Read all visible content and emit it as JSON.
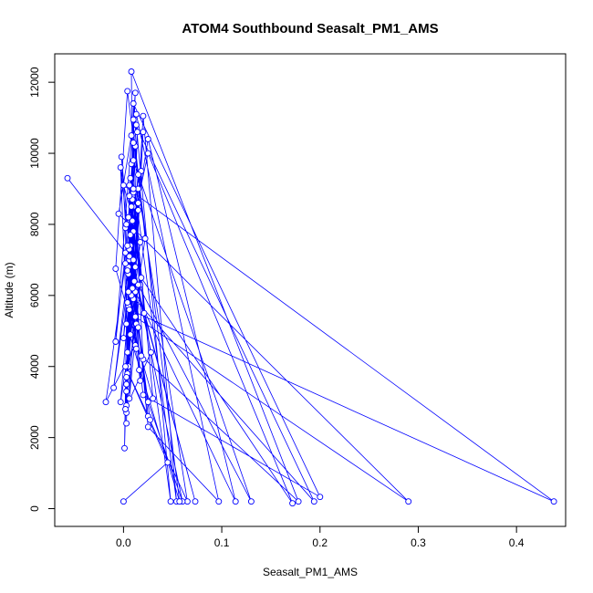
{
  "chart_data": {
    "type": "line",
    "title": "ATOM4 Southbound Seasalt_PM1_AMS",
    "xlabel": "Seasalt_PM1_AMS",
    "ylabel": "Altitude (m)",
    "xlim": [
      -0.07,
      0.45
    ],
    "ylim": [
      -500,
      12800
    ],
    "xticks": [
      0.0,
      0.1,
      0.2,
      0.3,
      0.4
    ],
    "xtick_labels": [
      "0.0",
      "0.1",
      "0.2",
      "0.3",
      "0.4"
    ],
    "yticks": [
      0,
      2000,
      4000,
      6000,
      8000,
      10000,
      12000
    ],
    "ytick_labels": [
      "0",
      "2000",
      "4000",
      "6000",
      "8000",
      "10000",
      "12000"
    ],
    "marker": "open-circle",
    "grid": false,
    "color": "#0000ff",
    "series": [
      {
        "x": [
          -0.057,
          0.002,
          -0.008,
          0.012,
          0.005,
          -0.01,
          0.015,
          0.003,
          0.02,
          0.054,
          0.008,
          0.017,
          0.006,
          0.02,
          0.01,
          0.006,
          0.003,
          0.009,
          0.012,
          0.114,
          0.025,
          0.01,
          0.003,
          0.015,
          0.0,
          0.007,
          0.025,
          0.065,
          0.015,
          0.005,
          -0.002,
          0.013,
          0.004,
          0.002,
          0.018,
          0.008,
          0.02,
          0.2,
          0.01,
          0.005,
          -0.003,
          0.022,
          0.012,
          0.004,
          0.009,
          0.048,
          0.013,
          0.002,
          0.017,
          0.007,
          0.012,
          0.29,
          -0.005,
          0.008,
          0.02,
          0.006,
          0.003,
          0.015,
          0.13,
          0.01,
          0.004,
          0.01,
          0.003,
          0.007,
          0.025,
          0.172,
          0.018,
          0.009,
          0.005,
          -0.003,
          0.015,
          0.025,
          0.06,
          0.006,
          0.014,
          0.009,
          0.002,
          0.028,
          0.003,
          0.012,
          0.006,
          0.438,
          0.0,
          0.017,
          0.007,
          0.01,
          0.005,
          0.025,
          0.097,
          0.013,
          0.004,
          0.012,
          -0.018,
          0.01,
          0.021,
          0.073,
          0.006,
          0.015,
          0.003,
          0.011,
          0.006,
          0.018,
          0.178,
          0.008,
          0.01,
          0.016,
          0.008,
          0.001,
          0.003,
          0.057,
          0.004,
          -0.008,
          0.03,
          0.01,
          0.005,
          0.194,
          0.01,
          0.013,
          0.004,
          0.027,
          0.002,
          0.045,
          0.0
        ],
        "y": [
          9300,
          7200,
          4700,
          11700,
          6800,
          3400,
          8400,
          2900,
          11050,
          200,
          9700,
          6300,
          3100,
          10600,
          5900,
          9100,
          2400,
          8800,
          6100,
          200,
          10400,
          7800,
          3500,
          8600,
          4800,
          7400,
          2600,
          200,
          9000,
          6600,
          9900,
          5200,
          3800,
          7900,
          9500,
          6000,
          3200,
          330,
          11400,
          5700,
          3000,
          7600,
          10200,
          4400,
          8100,
          200,
          10800,
          6900,
          3600,
          9300,
          5400,
          200,
          8300,
          10500,
          4200,
          7000,
          2700,
          6300,
          200,
          9800,
          5800,
          8900,
          3300,
          7700,
          10000,
          150,
          6500,
          8700,
          4000,
          9600,
          5100,
          3000,
          200,
          7300,
          10600,
          6200,
          2800,
          4400,
          8000,
          6800,
          5600,
          200,
          9100,
          7500,
          4900,
          10300,
          8200,
          2300,
          200,
          11100,
          6700,
          4600,
          3000,
          8500,
          5500,
          200,
          7100,
          9400,
          3700,
          6400,
          8800,
          4300,
          200,
          12300,
          7000,
          3900,
          8500,
          1700,
          5200,
          200,
          11750,
          6750,
          3100,
          9000,
          6100,
          200,
          10950,
          4500,
          7400,
          2500,
          4000,
          1300,
          200
        ]
      }
    ]
  }
}
